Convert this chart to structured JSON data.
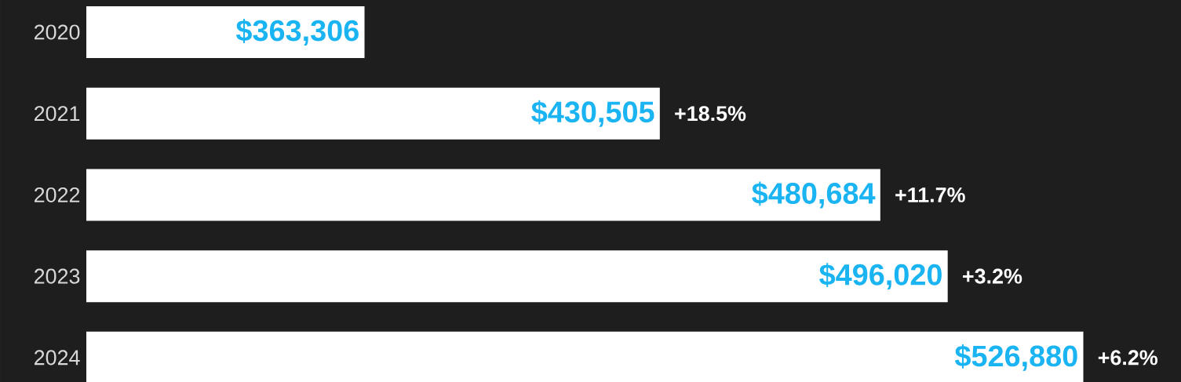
{
  "chart_data": {
    "type": "bar",
    "orientation": "horizontal",
    "categories": [
      "2020",
      "2021",
      "2022",
      "2023",
      "2024"
    ],
    "values": [
      363306,
      430505,
      480684,
      496020,
      526880
    ],
    "value_labels": [
      "$363,306",
      "$430,505",
      "$480,684",
      "$496,020",
      "$526,880"
    ],
    "color": "#ffffff",
    "xlim": [
      300000,
      550000
    ],
    "tick_labels": "y",
    "annotations": [
      {
        "text": "+18.5%",
        "x": 430505,
        "y": "2021"
      },
      {
        "text": "+11.7%",
        "x": 480684,
        "y": "2022"
      },
      {
        "text": "+3.2%",
        "x": 496020,
        "y": "2023"
      },
      {
        "text": "+6.2%",
        "x": 526880,
        "y": "2024"
      }
    ]
  }
}
